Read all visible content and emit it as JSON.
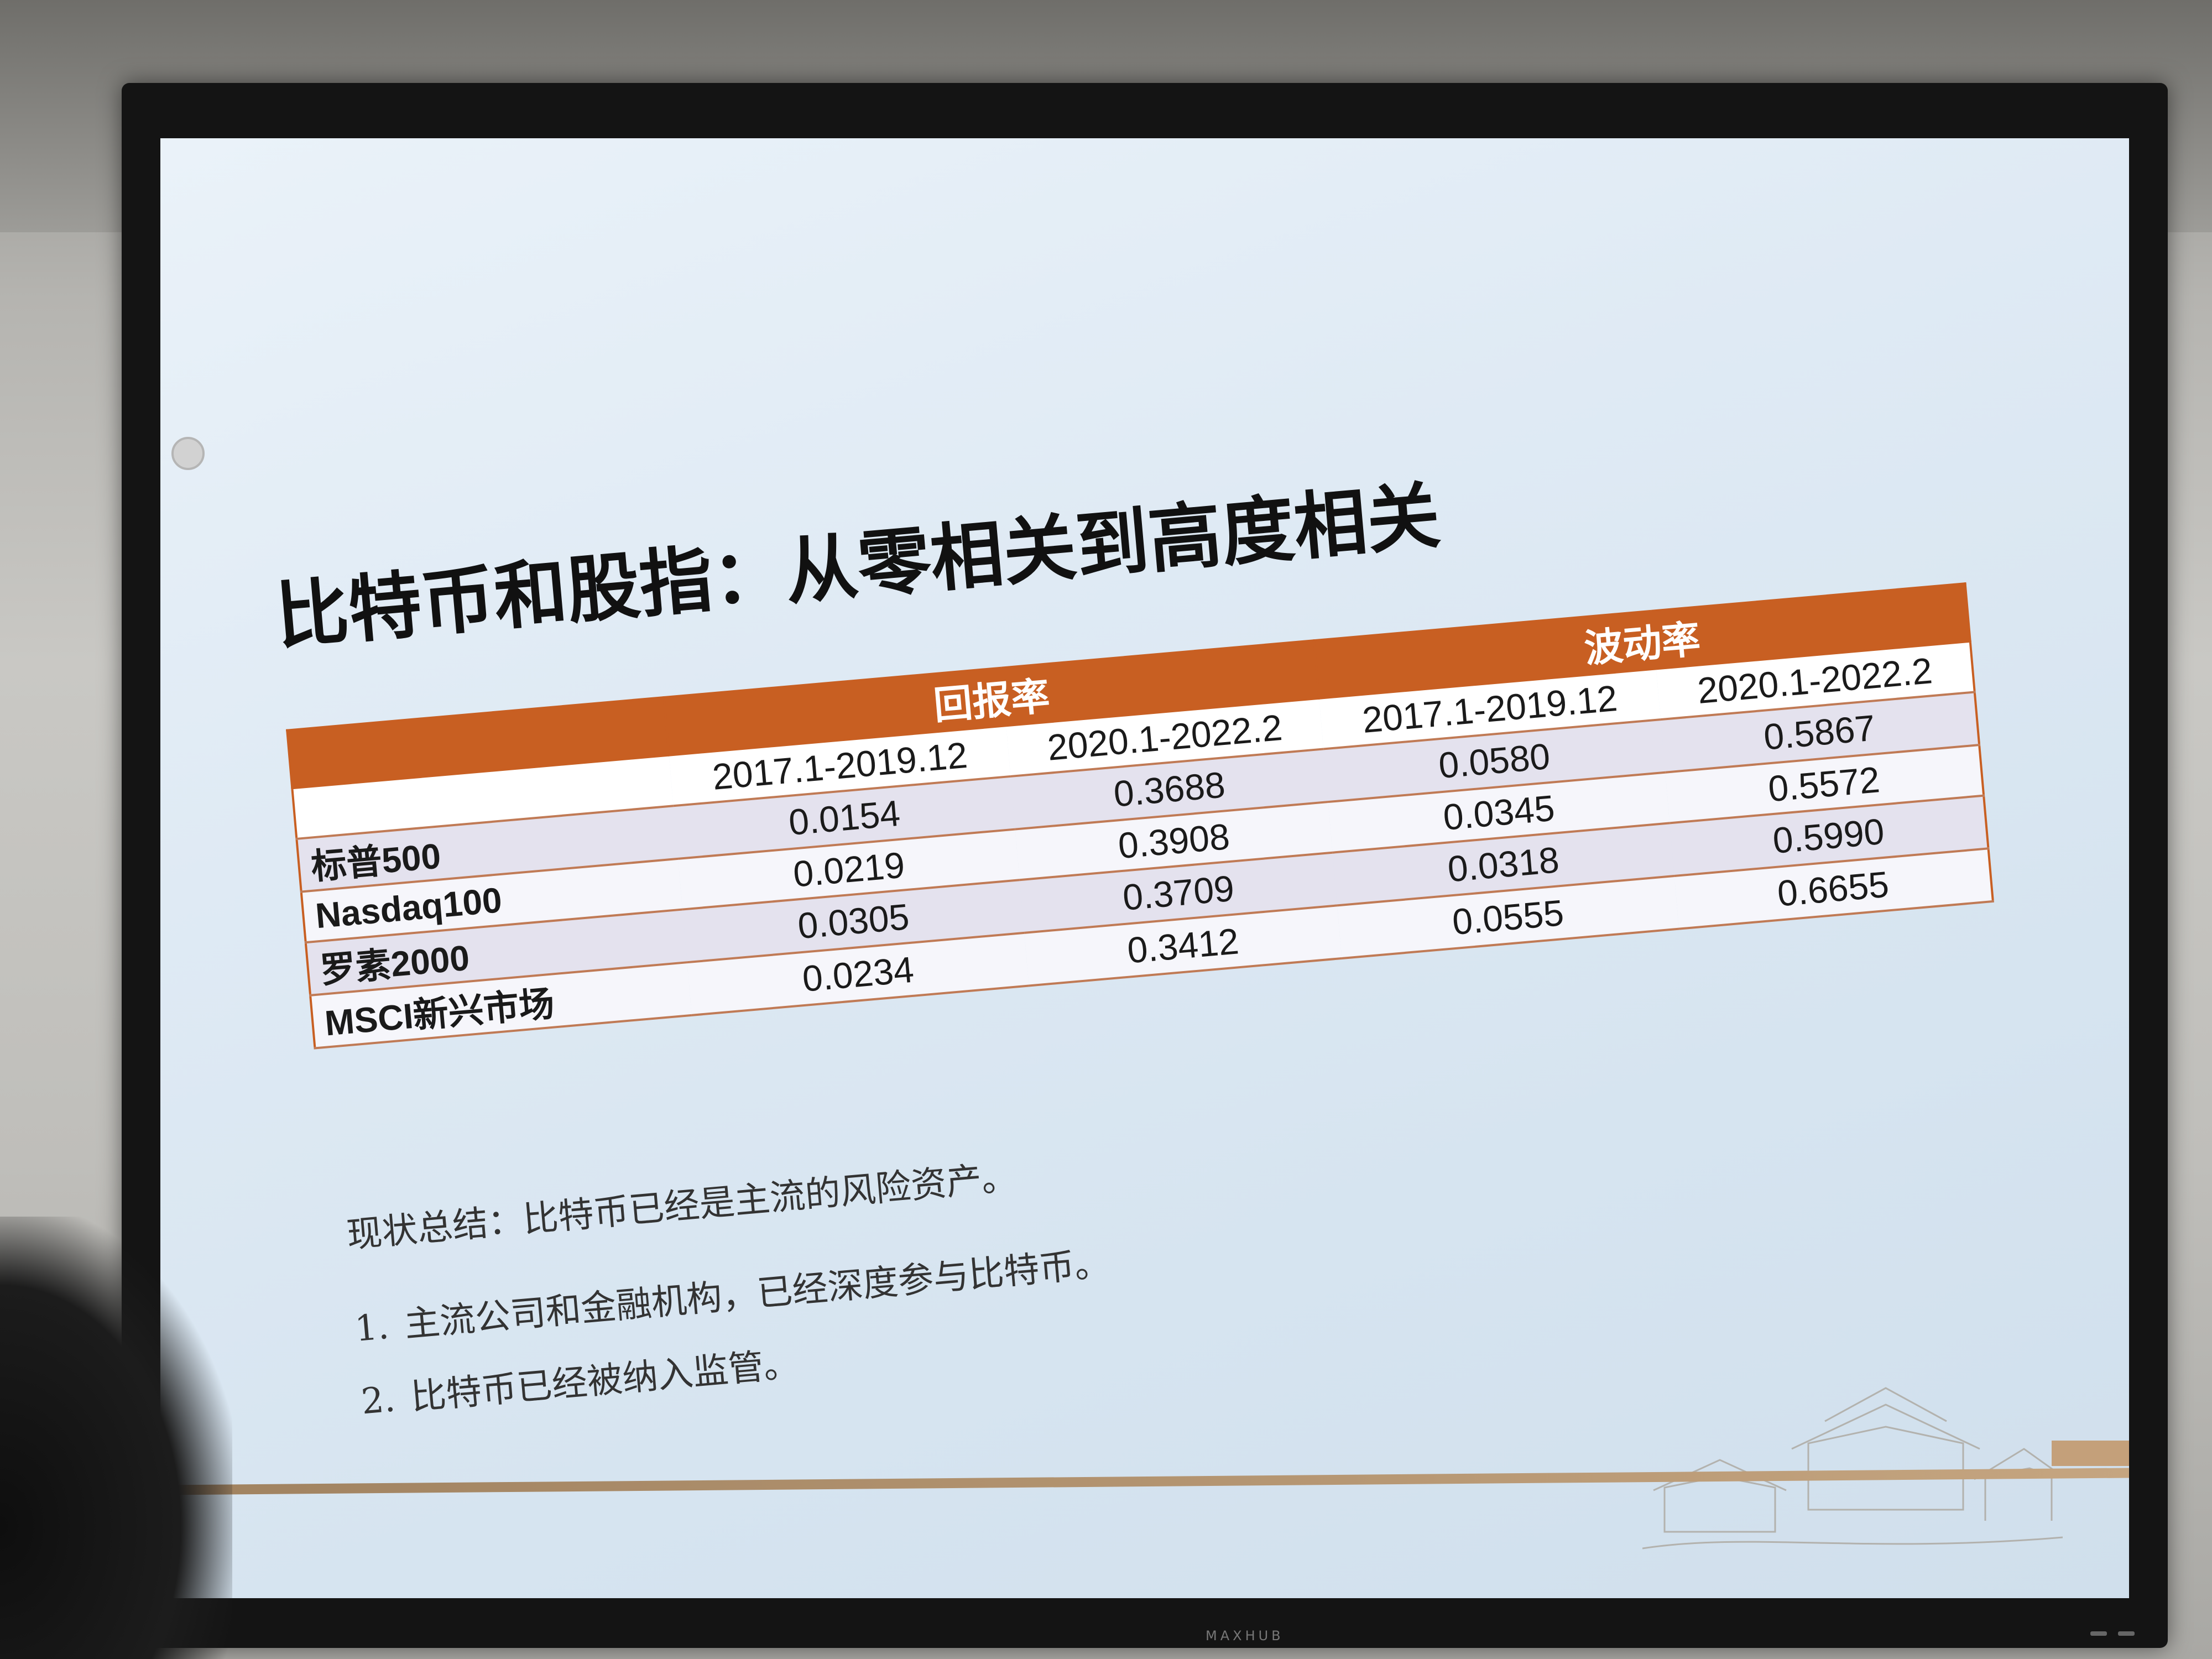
{
  "device": {
    "brand": "MAXHUB"
  },
  "slide": {
    "title": "比特币和股指：从零相关到高度相关",
    "table": {
      "groups": [
        {
          "label": "回报率",
          "periods": [
            "2017.1-2019.12",
            "2020.1-2022.2"
          ]
        },
        {
          "label": "波动率",
          "periods": [
            "2017.1-2019.12",
            "2020.1-2022.2"
          ]
        }
      ],
      "rows": [
        {
          "name": "标普500",
          "values": [
            "0.0154",
            "0.3688",
            "0.0580",
            "0.5867"
          ]
        },
        {
          "name": "Nasdaq100",
          "values": [
            "0.0219",
            "0.3908",
            "0.0345",
            "0.5572"
          ]
        },
        {
          "name": "罗素2000",
          "values": [
            "0.0305",
            "0.3709",
            "0.0318",
            "0.5990"
          ]
        },
        {
          "name": "MSCI新兴市场",
          "values": [
            "0.0234",
            "0.3412",
            "0.0555",
            "0.6655"
          ]
        }
      ]
    },
    "summary": "现状总结：比特币已经是主流的风险资产。",
    "points": [
      {
        "num": "1.",
        "text": "主流公司和金融机构，已经深度参与比特币。"
      },
      {
        "num": "2.",
        "text": "比特币已经被纳入监管。"
      }
    ]
  },
  "colors": {
    "header_orange": "#c85f22",
    "row_lavender": "#e4e2ee",
    "screen_blue": "#dfeaf4"
  }
}
